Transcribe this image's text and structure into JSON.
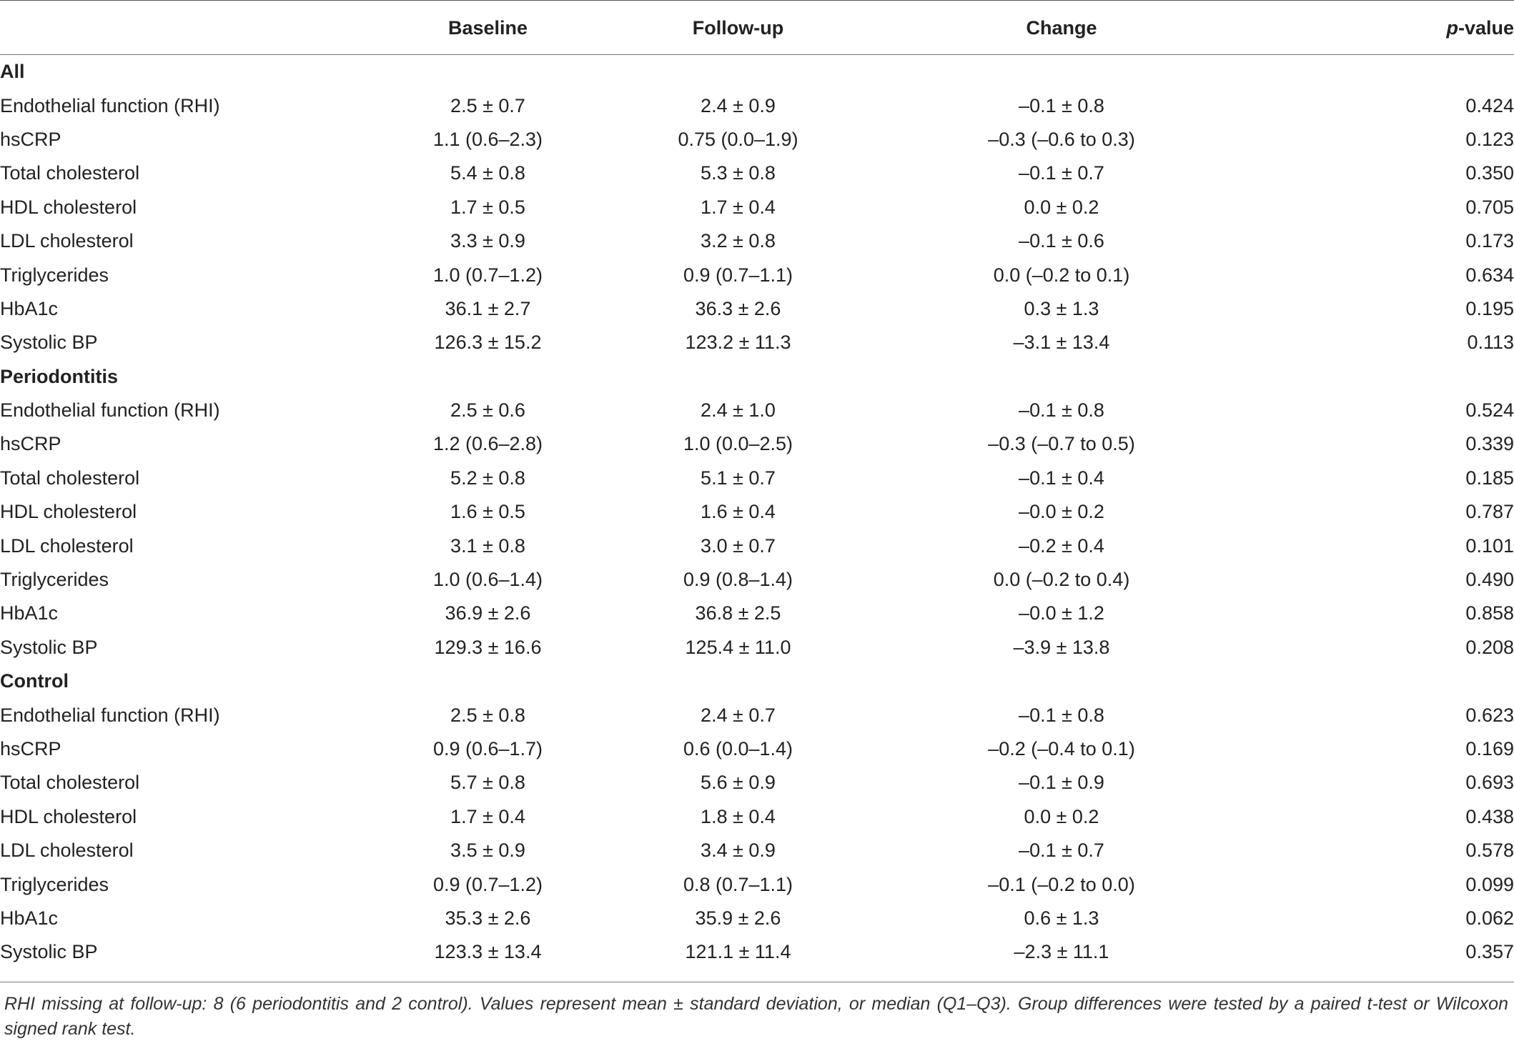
{
  "header": {
    "label": "",
    "baseline": "Baseline",
    "followup": "Follow-up",
    "change": "Change",
    "pvalue_italic": "p",
    "pvalue_rest": "-value"
  },
  "groups": [
    {
      "name": "All",
      "rows": [
        {
          "label": "Endothelial function (RHI)",
          "baseline": "2.5 ± 0.7",
          "followup": "2.4 ± 0.9",
          "change": "–0.1 ± 0.8",
          "p": "0.424"
        },
        {
          "label": "hsCRP",
          "baseline": "1.1 (0.6–2.3)",
          "followup": "0.75 (0.0–1.9)",
          "change": "–0.3 (–0.6 to 0.3)",
          "p": "0.123"
        },
        {
          "label": "Total cholesterol",
          "baseline": "5.4 ± 0.8",
          "followup": "5.3 ± 0.8",
          "change": "–0.1 ± 0.7",
          "p": "0.350"
        },
        {
          "label": "HDL cholesterol",
          "baseline": "1.7 ± 0.5",
          "followup": "1.7 ± 0.4",
          "change": "0.0 ± 0.2",
          "p": "0.705"
        },
        {
          "label": "LDL cholesterol",
          "baseline": "3.3 ± 0.9",
          "followup": "3.2 ± 0.8",
          "change": "–0.1 ± 0.6",
          "p": "0.173"
        },
        {
          "label": "Triglycerides",
          "baseline": "1.0 (0.7–1.2)",
          "followup": "0.9 (0.7–1.1)",
          "change": "0.0 (–0.2 to 0.1)",
          "p": "0.634"
        },
        {
          "label": "HbA1c",
          "baseline": "36.1 ± 2.7",
          "followup": "36.3 ± 2.6",
          "change": "0.3 ± 1.3",
          "p": "0.195"
        },
        {
          "label": "Systolic BP",
          "baseline": "126.3 ± 15.2",
          "followup": "123.2 ± 11.3",
          "change": "–3.1 ± 13.4",
          "p": "0.113"
        }
      ]
    },
    {
      "name": "Periodontitis",
      "rows": [
        {
          "label": "Endothelial function (RHI)",
          "baseline": "2.5 ± 0.6",
          "followup": "2.4 ± 1.0",
          "change": "–0.1 ± 0.8",
          "p": "0.524"
        },
        {
          "label": "hsCRP",
          "baseline": "1.2 (0.6–2.8)",
          "followup": "1.0 (0.0–2.5)",
          "change": "–0.3 (–0.7 to 0.5)",
          "p": "0.339"
        },
        {
          "label": "Total cholesterol",
          "baseline": "5.2 ± 0.8",
          "followup": "5.1 ± 0.7",
          "change": "–0.1 ± 0.4",
          "p": "0.185"
        },
        {
          "label": "HDL cholesterol",
          "baseline": "1.6 ± 0.5",
          "followup": "1.6 ± 0.4",
          "change": "–0.0 ± 0.2",
          "p": "0.787"
        },
        {
          "label": "LDL cholesterol",
          "baseline": "3.1 ± 0.8",
          "followup": "3.0 ± 0.7",
          "change": "–0.2 ± 0.4",
          "p": "0.101"
        },
        {
          "label": "Triglycerides",
          "baseline": "1.0 (0.6–1.4)",
          "followup": "0.9 (0.8–1.4)",
          "change": "0.0 (–0.2 to 0.4)",
          "p": "0.490"
        },
        {
          "label": "HbA1c",
          "baseline": "36.9 ± 2.6",
          "followup": "36.8 ± 2.5",
          "change": "–0.0 ± 1.2",
          "p": "0.858"
        },
        {
          "label": "Systolic BP",
          "baseline": "129.3 ± 16.6",
          "followup": "125.4 ± 11.0",
          "change": "–3.9 ± 13.8",
          "p": "0.208"
        }
      ]
    },
    {
      "name": "Control",
      "rows": [
        {
          "label": "Endothelial function (RHI)",
          "baseline": "2.5 ± 0.8",
          "followup": "2.4 ± 0.7",
          "change": "–0.1 ± 0.8",
          "p": "0.623"
        },
        {
          "label": "hsCRP",
          "baseline": "0.9 (0.6–1.7)",
          "followup": "0.6 (0.0–1.4)",
          "change": "–0.2 (–0.4 to 0.1)",
          "p": "0.169"
        },
        {
          "label": "Total cholesterol",
          "baseline": "5.7 ± 0.8",
          "followup": "5.6 ± 0.9",
          "change": "–0.1 ± 0.9",
          "p": "0.693"
        },
        {
          "label": "HDL cholesterol",
          "baseline": "1.7 ± 0.4",
          "followup": "1.8 ± 0.4",
          "change": "0.0 ± 0.2",
          "p": "0.438"
        },
        {
          "label": "LDL cholesterol",
          "baseline": "3.5 ± 0.9",
          "followup": "3.4 ± 0.9",
          "change": "–0.1 ± 0.7",
          "p": "0.578"
        },
        {
          "label": "Triglycerides",
          "baseline": "0.9 (0.7–1.2)",
          "followup": "0.8 (0.7–1.1)",
          "change": "–0.1 (–0.2 to 0.0)",
          "p": "0.099"
        },
        {
          "label": "HbA1c",
          "baseline": "35.3 ± 2.6",
          "followup": "35.9 ± 2.6",
          "change": "0.6 ± 1.3",
          "p": "0.062"
        },
        {
          "label": "Systolic BP",
          "baseline": "123.3 ± 13.4",
          "followup": "121.1 ± 11.4",
          "change": "–2.3 ± 11.1",
          "p": "0.357"
        }
      ]
    }
  ],
  "footnote": "RHI missing at follow-up: 8 (6 periodontitis and 2 control). Values represent mean ± standard deviation, or median (Q1–Q3). Group differences were tested by a paired t-test or Wilcoxon signed rank test."
}
